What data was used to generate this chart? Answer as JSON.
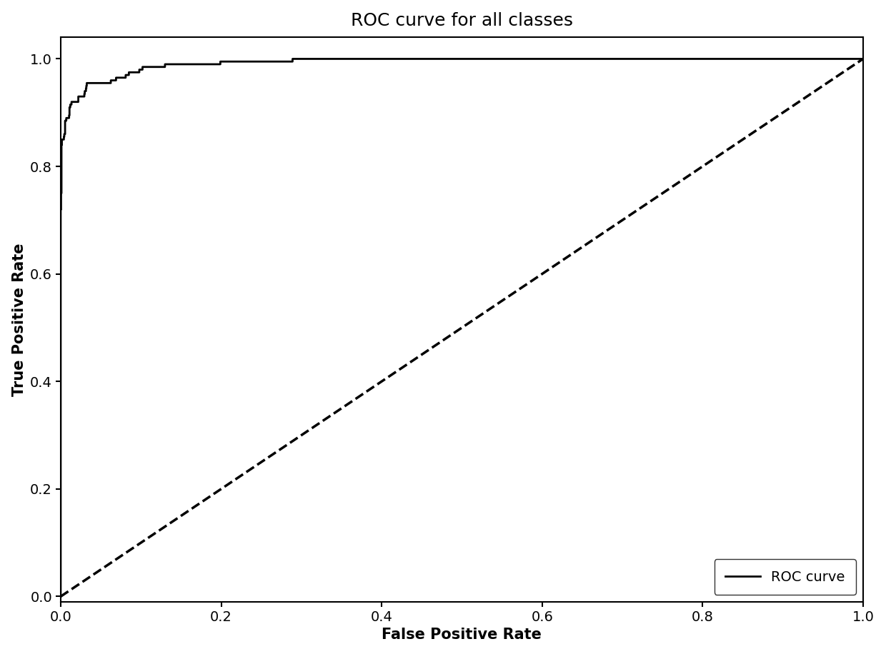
{
  "title": "ROC curve for all classes",
  "xlabel": "False Positive Rate",
  "ylabel": "True Positive Rate",
  "xlim": [
    0.0,
    1.0
  ],
  "ylim": [
    -0.01,
    1.04
  ],
  "xticks": [
    0.0,
    0.2,
    0.4,
    0.6,
    0.8,
    1.0
  ],
  "yticks": [
    0.0,
    0.2,
    0.4,
    0.6,
    0.8,
    1.0
  ],
  "roc_color": "#000000",
  "diag_color": "#000000",
  "roc_linewidth": 2.0,
  "diag_linewidth": 2.5,
  "title_fontsize": 18,
  "label_fontsize": 15,
  "tick_fontsize": 14,
  "legend_fontsize": 14,
  "legend_label": "ROC curve",
  "background_color": "#ffffff"
}
